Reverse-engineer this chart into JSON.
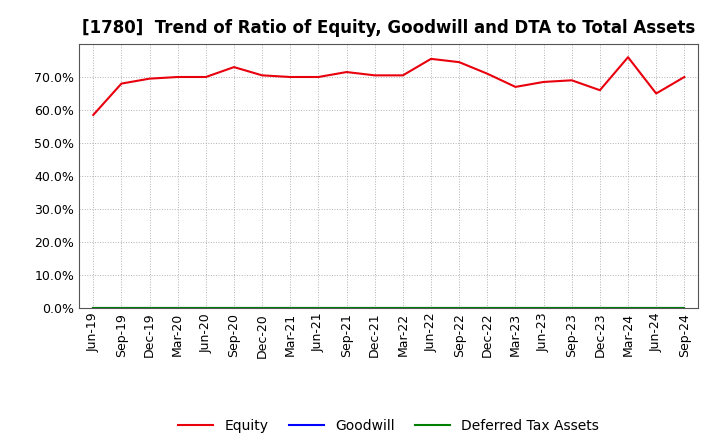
{
  "title": "[1780]  Trend of Ratio of Equity, Goodwill and DTA to Total Assets",
  "labels": [
    "Jun-19",
    "Sep-19",
    "Dec-19",
    "Mar-20",
    "Jun-20",
    "Sep-20",
    "Dec-20",
    "Mar-21",
    "Jun-21",
    "Sep-21",
    "Dec-21",
    "Mar-22",
    "Jun-22",
    "Sep-22",
    "Dec-22",
    "Mar-23",
    "Jun-23",
    "Sep-23",
    "Dec-23",
    "Mar-24",
    "Jun-24",
    "Sep-24"
  ],
  "equity": [
    58.5,
    68.0,
    69.5,
    70.0,
    70.0,
    73.0,
    70.5,
    70.0,
    70.0,
    71.5,
    70.5,
    70.5,
    75.5,
    74.5,
    71.0,
    67.0,
    68.5,
    69.0,
    66.0,
    76.0,
    65.0,
    70.0
  ],
  "goodwill": [
    0.0,
    0.0,
    0.0,
    0.0,
    0.0,
    0.0,
    0.0,
    0.0,
    0.0,
    0.0,
    0.0,
    0.0,
    0.0,
    0.0,
    0.0,
    0.0,
    0.0,
    0.0,
    0.0,
    0.0,
    0.0,
    0.0
  ],
  "dta": [
    0.0,
    0.0,
    0.0,
    0.0,
    0.0,
    0.0,
    0.0,
    0.0,
    0.0,
    0.0,
    0.0,
    0.0,
    0.0,
    0.0,
    0.0,
    0.0,
    0.0,
    0.0,
    0.0,
    0.0,
    0.0,
    0.0
  ],
  "equity_color": "#e8000d",
  "goodwill_color": "#0000ff",
  "dta_color": "#008000",
  "ylim": [
    0,
    80
  ],
  "yticks": [
    0,
    10,
    20,
    30,
    40,
    50,
    60,
    70
  ],
  "ytick_labels": [
    "0.0%",
    "10.0%",
    "20.0%",
    "30.0%",
    "40.0%",
    "50.0%",
    "60.0%",
    "70.0%"
  ],
  "bg_color": "#ffffff",
  "plot_bg_color": "#ffffff",
  "grid_color": "#aaaaaa",
  "legend_equity": "Equity",
  "legend_goodwill": "Goodwill",
  "legend_dta": "Deferred Tax Assets",
  "title_fontsize": 12,
  "tick_fontsize": 9,
  "legend_fontsize": 10,
  "spine_color": "#555555"
}
